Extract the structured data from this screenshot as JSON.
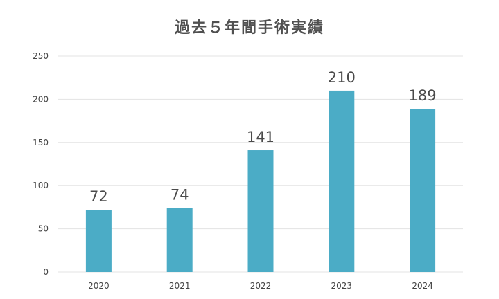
{
  "chart_data": {
    "type": "bar",
    "title": "過去５年間手術実績",
    "xlabel": "",
    "ylabel": "",
    "categories": [
      "2020",
      "2021",
      "2022",
      "2023",
      "2024"
    ],
    "values": [
      72,
      74,
      141,
      210,
      189
    ],
    "ylim": [
      0,
      250
    ],
    "yticks": [
      0,
      50,
      100,
      150,
      200,
      250
    ],
    "grid": true,
    "legend": "none",
    "bar_color": "#4bacc6",
    "grid_color": "#e3e3e3"
  }
}
